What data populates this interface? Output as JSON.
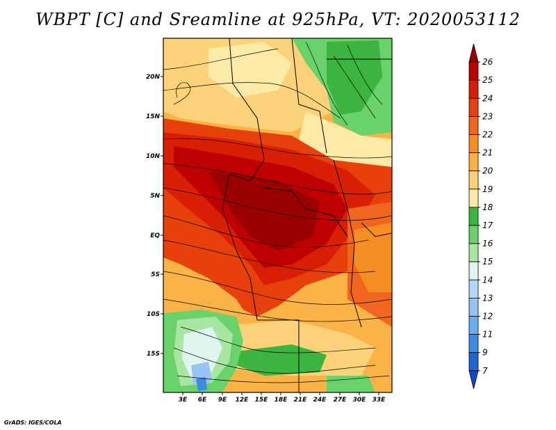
{
  "title": "WBPT [C] and Sreamline at 925hPa, VT: 2020053112",
  "credit": "GrADS: IGES/COLA",
  "map": {
    "lat_labels": [
      "20N",
      "15N",
      "10N",
      "5N",
      "EQ",
      "5S",
      "10S",
      "15S"
    ],
    "lon_labels": [
      "3E",
      "6E",
      "9E",
      "12E",
      "15E",
      "18E",
      "21E",
      "24E",
      "27E",
      "30E",
      "33E"
    ],
    "lon_range_deg": [
      0,
      35
    ],
    "lat_range_deg": [
      -21,
      24.5
    ]
  },
  "colorbar": {
    "labels": [
      "26",
      "25",
      "24",
      "23",
      "22",
      "21",
      "20",
      "19",
      "18",
      "17",
      "16",
      "15",
      "14",
      "13",
      "12",
      "11",
      "9",
      "7"
    ],
    "colors": [
      "#9b0000",
      "#be0000",
      "#d81e05",
      "#e8400c",
      "#f0661e",
      "#f58d22",
      "#f9b347",
      "#fbd27a",
      "#fdeaa6",
      "#3cb540",
      "#6ad26a",
      "#a8e6a3",
      "#e0f5f0",
      "#b4d8f7",
      "#96c5f5",
      "#6aaef0",
      "#3c8ce6",
      "#1e64d2",
      "#1446c8"
    ]
  }
}
